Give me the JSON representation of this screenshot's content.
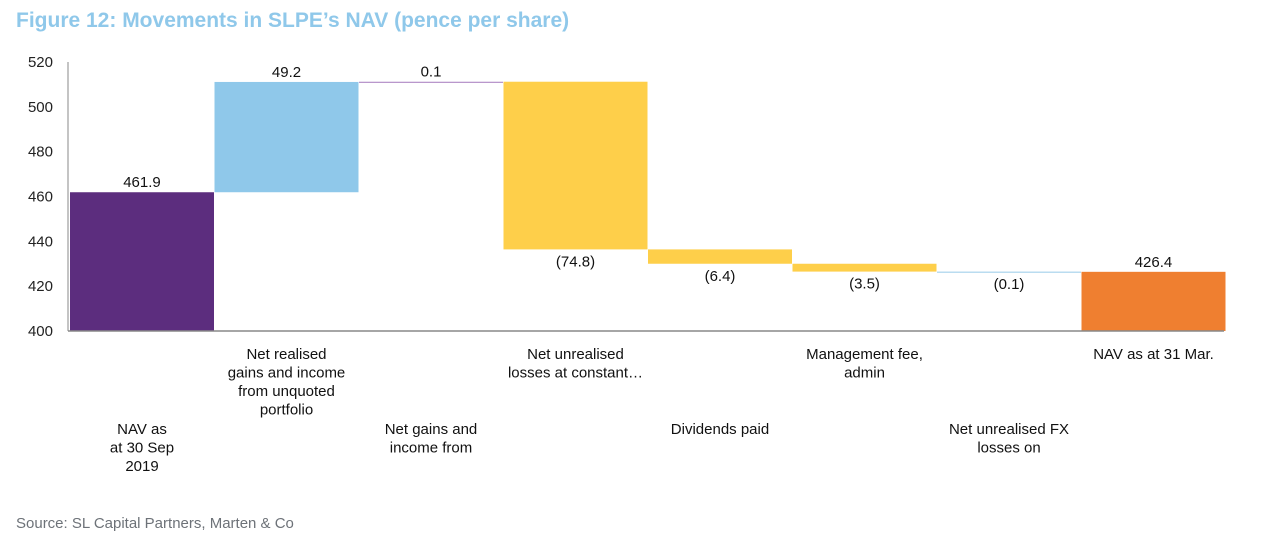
{
  "title": "Figure 12: Movements in SLPE’s NAV (pence per share)",
  "source": "Source: SL Capital Partners, Marten & Co",
  "chart_data": {
    "type": "bar",
    "subtype": "waterfall",
    "ylim": [
      400,
      520
    ],
    "yticks": [
      400,
      420,
      440,
      460,
      480,
      500,
      520
    ],
    "grid": false,
    "legend": "none",
    "categories": [
      {
        "lines": [
          "NAV as",
          "at 30 Sep",
          "2019"
        ],
        "row": 2
      },
      {
        "lines": [
          "Net realised",
          "gains and income",
          "from unquoted",
          "portfolio"
        ],
        "row": 1
      },
      {
        "lines": [
          "Net gains and",
          "income from"
        ],
        "row": 2
      },
      {
        "lines": [
          "Net unrealised",
          "losses at constant…"
        ],
        "row": 1
      },
      {
        "lines": [
          "Dividends paid"
        ],
        "row": 2
      },
      {
        "lines": [
          "Management fee,",
          "admin"
        ],
        "row": 1
      },
      {
        "lines": [
          "Net unrealised FX",
          "losses on"
        ],
        "row": 2
      },
      {
        "lines": [
          "NAV as at 31 Mar."
        ],
        "row": 1
      }
    ],
    "bars": [
      {
        "label": "461.9",
        "start": 400,
        "end": 461.9,
        "color": "#5c2d7e"
      },
      {
        "label": "49.2",
        "start": 461.9,
        "end": 511.1,
        "color": "#8fc8ea"
      },
      {
        "label": "0.1",
        "start": 511.1,
        "end": 511.2,
        "color": "#b48fc8"
      },
      {
        "label": "(74.8)",
        "start": 511.2,
        "end": 436.4,
        "color": "#fecf4a"
      },
      {
        "label": "(6.4)",
        "start": 436.4,
        "end": 430.0,
        "color": "#fecf4a"
      },
      {
        "label": "(3.5)",
        "start": 430.0,
        "end": 426.5,
        "color": "#fecf4a"
      },
      {
        "label": "(0.1)",
        "start": 426.5,
        "end": 426.4,
        "color": "#a9d3ec"
      },
      {
        "label": "426.4",
        "start": 400,
        "end": 426.4,
        "color": "#ef7f30"
      }
    ],
    "colors": {
      "axis": "#888888"
    }
  }
}
